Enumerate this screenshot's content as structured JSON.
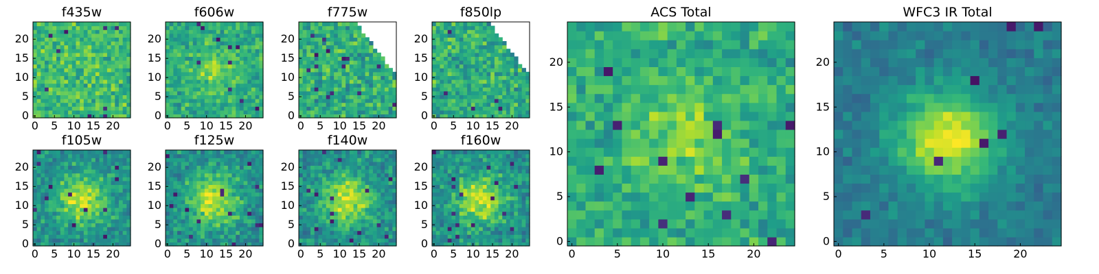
{
  "figure": {
    "background": "#ffffff"
  },
  "chart_data": [
    {
      "type": "heatmap",
      "title": "f435w",
      "xticks": [
        0,
        5,
        10,
        15,
        20
      ],
      "yticks": [
        0,
        5,
        10,
        15,
        20
      ],
      "xlim": [
        0,
        25
      ],
      "ylim": [
        0,
        25
      ],
      "grid": false,
      "colormap": "viridis",
      "structure": "noise"
    },
    {
      "type": "heatmap",
      "title": "f606w",
      "xticks": [
        0,
        5,
        10,
        15,
        20
      ],
      "yticks": [
        0,
        5,
        10,
        15,
        20
      ],
      "xlim": [
        0,
        25
      ],
      "ylim": [
        0,
        25
      ],
      "grid": false,
      "colormap": "viridis",
      "structure": "faint-central-source"
    },
    {
      "type": "heatmap",
      "title": "f775w",
      "xticks": [
        0,
        5,
        10,
        15,
        20
      ],
      "yticks": [
        0,
        5,
        10,
        15,
        20
      ],
      "xlim": [
        0,
        25
      ],
      "ylim": [
        0,
        25
      ],
      "grid": false,
      "colormap": "viridis",
      "structure": "noise-with-blank-corner"
    },
    {
      "type": "heatmap",
      "title": "f850lp",
      "xticks": [
        0,
        5,
        10,
        15,
        20
      ],
      "yticks": [
        0,
        5,
        10,
        15,
        20
      ],
      "xlim": [
        0,
        25
      ],
      "ylim": [
        0,
        25
      ],
      "grid": false,
      "colormap": "viridis",
      "structure": "noise-with-blank-corner"
    },
    {
      "type": "heatmap",
      "title": "f105w",
      "xticks": [
        0,
        5,
        10,
        15,
        20
      ],
      "yticks": [
        0,
        5,
        10,
        15,
        20
      ],
      "xlim": [
        0,
        25
      ],
      "ylim": [
        0,
        25
      ],
      "grid": false,
      "colormap": "viridis",
      "structure": "central-source"
    },
    {
      "type": "heatmap",
      "title": "f125w",
      "xticks": [
        0,
        5,
        10,
        15,
        20
      ],
      "yticks": [
        0,
        5,
        10,
        15,
        20
      ],
      "xlim": [
        0,
        25
      ],
      "ylim": [
        0,
        25
      ],
      "grid": false,
      "colormap": "viridis",
      "structure": "central-source"
    },
    {
      "type": "heatmap",
      "title": "f140w",
      "xticks": [
        0,
        5,
        10,
        15,
        20
      ],
      "yticks": [
        0,
        5,
        10,
        15,
        20
      ],
      "xlim": [
        0,
        25
      ],
      "ylim": [
        0,
        25
      ],
      "grid": false,
      "colormap": "viridis",
      "structure": "central-source"
    },
    {
      "type": "heatmap",
      "title": "f160w",
      "xticks": [
        0,
        5,
        10,
        15,
        20
      ],
      "yticks": [
        0,
        5,
        10,
        15,
        20
      ],
      "xlim": [
        0,
        25
      ],
      "ylim": [
        0,
        25
      ],
      "grid": false,
      "colormap": "viridis",
      "structure": "central-source"
    },
    {
      "type": "heatmap",
      "title": "ACS Total",
      "xticks": [
        0,
        5,
        10,
        15,
        20
      ],
      "yticks": [
        0,
        5,
        10,
        15,
        20
      ],
      "xlim": [
        0,
        25
      ],
      "ylim": [
        0,
        25
      ],
      "grid": false,
      "colormap": "viridis",
      "structure": "faint-central-source"
    },
    {
      "type": "heatmap",
      "title": "WFC3 IR Total",
      "xticks": [
        0,
        5,
        10,
        15,
        20
      ],
      "yticks": [
        0,
        5,
        10,
        15,
        20
      ],
      "xlim": [
        0,
        25
      ],
      "ylim": [
        0,
        25
      ],
      "grid": false,
      "colormap": "viridis",
      "structure": "bright-central-source"
    }
  ]
}
